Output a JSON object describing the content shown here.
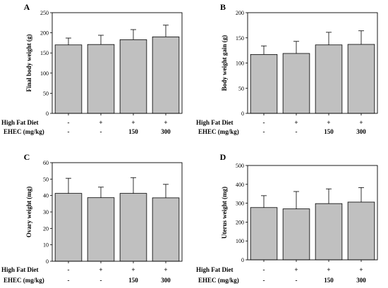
{
  "chart_data": [
    {
      "type": "bar",
      "panel_letter": "A",
      "ylabel": "Final body weight (g)",
      "ylim": [
        0,
        250
      ],
      "yticks": [
        0,
        50,
        100,
        150,
        200,
        250
      ],
      "values": [
        170,
        171,
        183,
        190
      ],
      "errors": [
        17,
        23,
        25,
        29
      ]
    },
    {
      "type": "bar",
      "panel_letter": "B",
      "ylabel": "Body weight gain (g)",
      "ylim": [
        0,
        200
      ],
      "yticks": [
        0,
        50,
        100,
        150,
        200
      ],
      "values": [
        117,
        119,
        136,
        137
      ],
      "errors": [
        17,
        24,
        25,
        27
      ]
    },
    {
      "type": "bar",
      "panel_letter": "C",
      "ylabel": "Ovary weight (mg)",
      "ylim": [
        0,
        60
      ],
      "yticks": [
        0,
        10,
        20,
        30,
        40,
        50,
        60
      ],
      "values": [
        41.3,
        38.7,
        41.3,
        38.6
      ],
      "errors": [
        9.2,
        6.4,
        9.6,
        8.2
      ]
    },
    {
      "type": "bar",
      "panel_letter": "D",
      "ylabel": "Uterus weight (mg)",
      "ylim": [
        0,
        500
      ],
      "yticks": [
        0,
        100,
        200,
        300,
        400,
        500
      ],
      "values": [
        277,
        270,
        298,
        306
      ],
      "errors": [
        63,
        92,
        78,
        77
      ]
    }
  ],
  "row_labels": {
    "diet": "High Fat Diet",
    "dose": "EHEC (mg/kg)"
  },
  "groups": [
    {
      "diet": "-",
      "dose": "-"
    },
    {
      "diet": "+",
      "dose": "-"
    },
    {
      "diet": "+",
      "dose": "150"
    },
    {
      "diet": "+",
      "dose": "300"
    }
  ],
  "colors": {
    "bar_fill": "#c0c0c0",
    "bar_stroke": "#000000"
  }
}
